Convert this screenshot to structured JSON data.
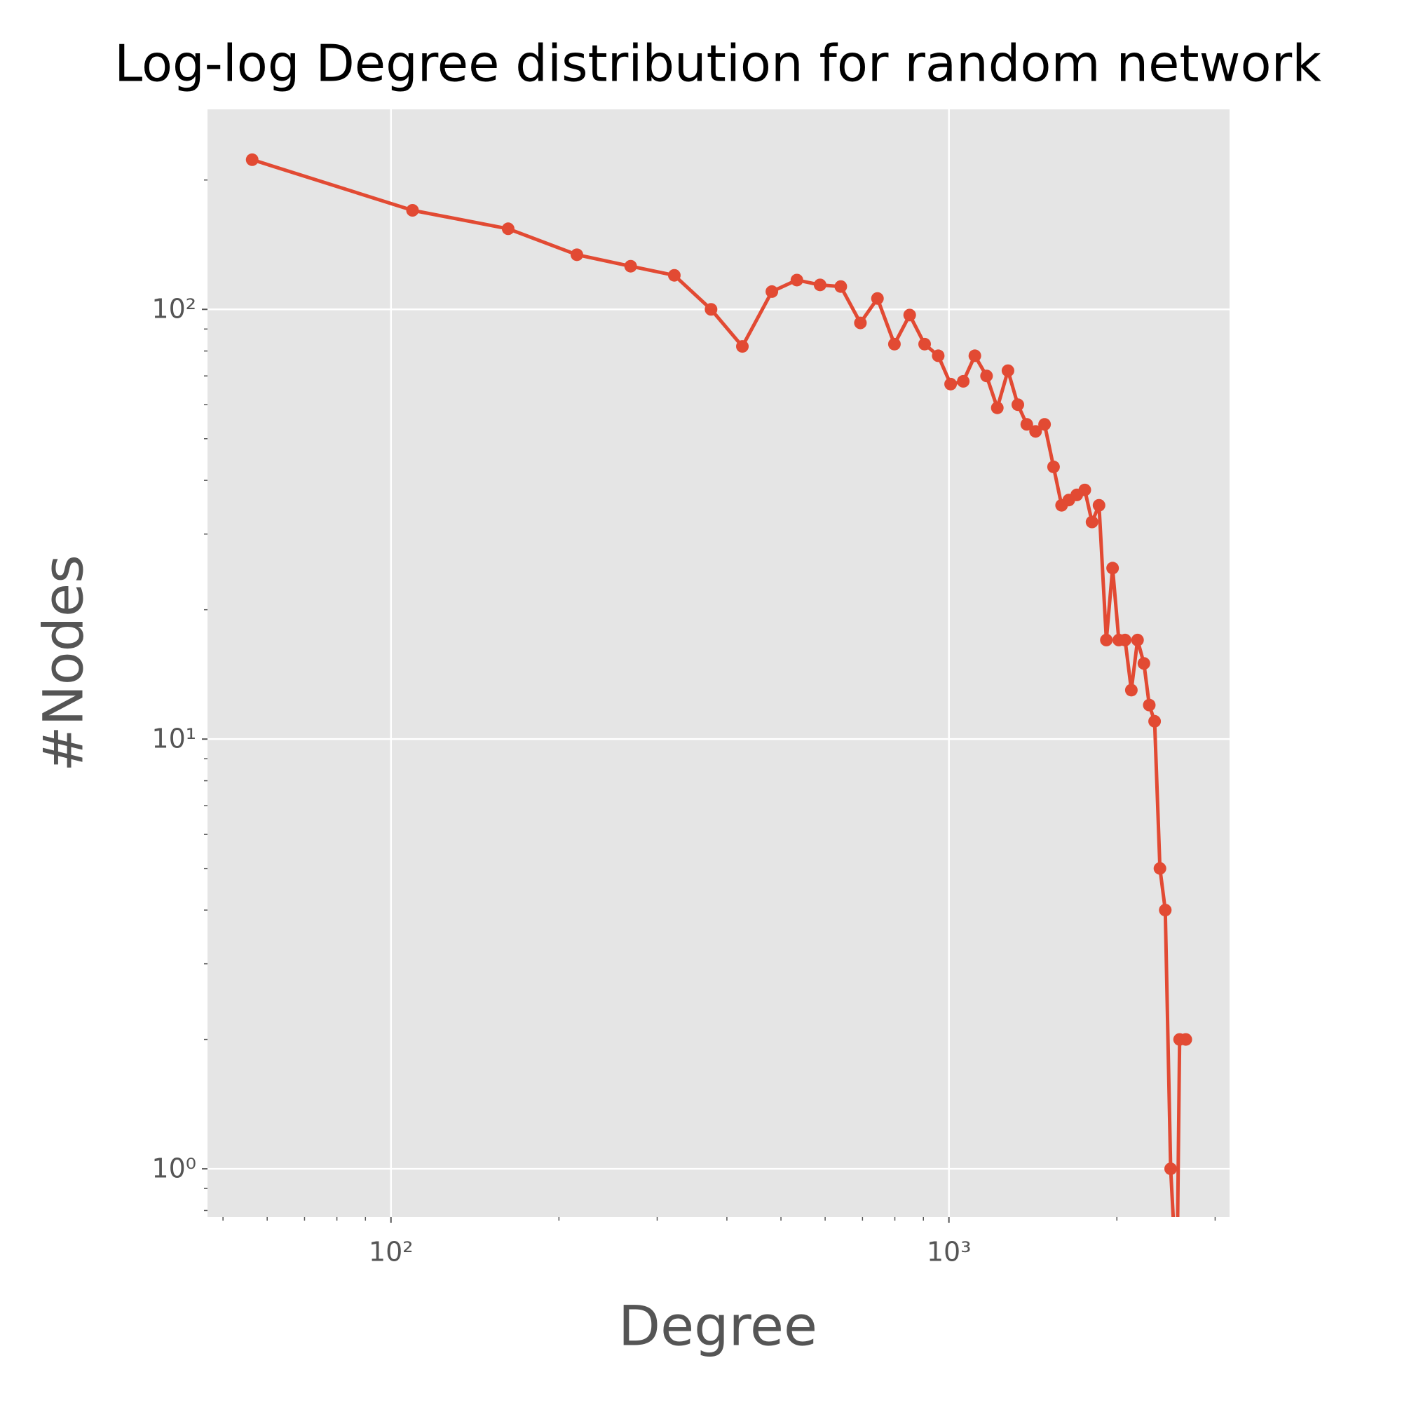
{
  "chart_data": {
    "type": "line",
    "title": "Log-log Degree distribution for random network",
    "x_label": "Degree",
    "y_label": "#Nodes",
    "x_scale": "log",
    "y_scale": "log",
    "grid": true,
    "xlim": [
      46.9,
      3184
    ],
    "ylim": [
      0.772,
      292
    ],
    "xticks": [
      {
        "value": 100,
        "label": "10²"
      },
      {
        "value": 1000,
        "label": "10³"
      }
    ],
    "yticks": [
      {
        "value": 1,
        "label": "10⁰"
      },
      {
        "value": 10,
        "label": "10¹"
      },
      {
        "value": 100,
        "label": "10²"
      }
    ],
    "xticks_minor": [
      50,
      60,
      70,
      80,
      90,
      200,
      300,
      400,
      500,
      600,
      700,
      800,
      900,
      2000,
      3000
    ],
    "yticks_minor": [
      0.8,
      0.9,
      2,
      3,
      4,
      5,
      6,
      7,
      8,
      9,
      20,
      30,
      40,
      50,
      60,
      70,
      80,
      90,
      200
    ],
    "series": [
      {
        "name": "Degree distribution",
        "color": "#e24a33",
        "x": [
          56.4,
          109.3,
          162.2,
          215.4,
          268.9,
          322,
          374.7,
          426.4,
          481.6,
          534,
          587.6,
          640,
          694,
          744.6,
          798.6,
          850.5,
          904.6,
          956.8,
          1007,
          1061,
          1113,
          1168,
          1221,
          1276,
          1329,
          1379,
          1430,
          1484,
          1540,
          1592,
          1640,
          1695,
          1752,
          1805,
          1858,
          1915,
          1965,
          2016,
          2069,
          2123,
          2178,
          2236,
          2286,
          2337,
          2389,
          2442,
          2497,
          2562,
          2591,
          2658
        ],
        "values": [
          223,
          170,
          154,
          134,
          126,
          120,
          100,
          82,
          110,
          117,
          114,
          113,
          93,
          106,
          83,
          97,
          83,
          78,
          67,
          68,
          78,
          70,
          59,
          72,
          60,
          54,
          52,
          54,
          43,
          35,
          36,
          37,
          38,
          32,
          35,
          17,
          25,
          17,
          17,
          13,
          17,
          15,
          12,
          11,
          5,
          4,
          1,
          0,
          2,
          2
        ]
      }
    ]
  }
}
